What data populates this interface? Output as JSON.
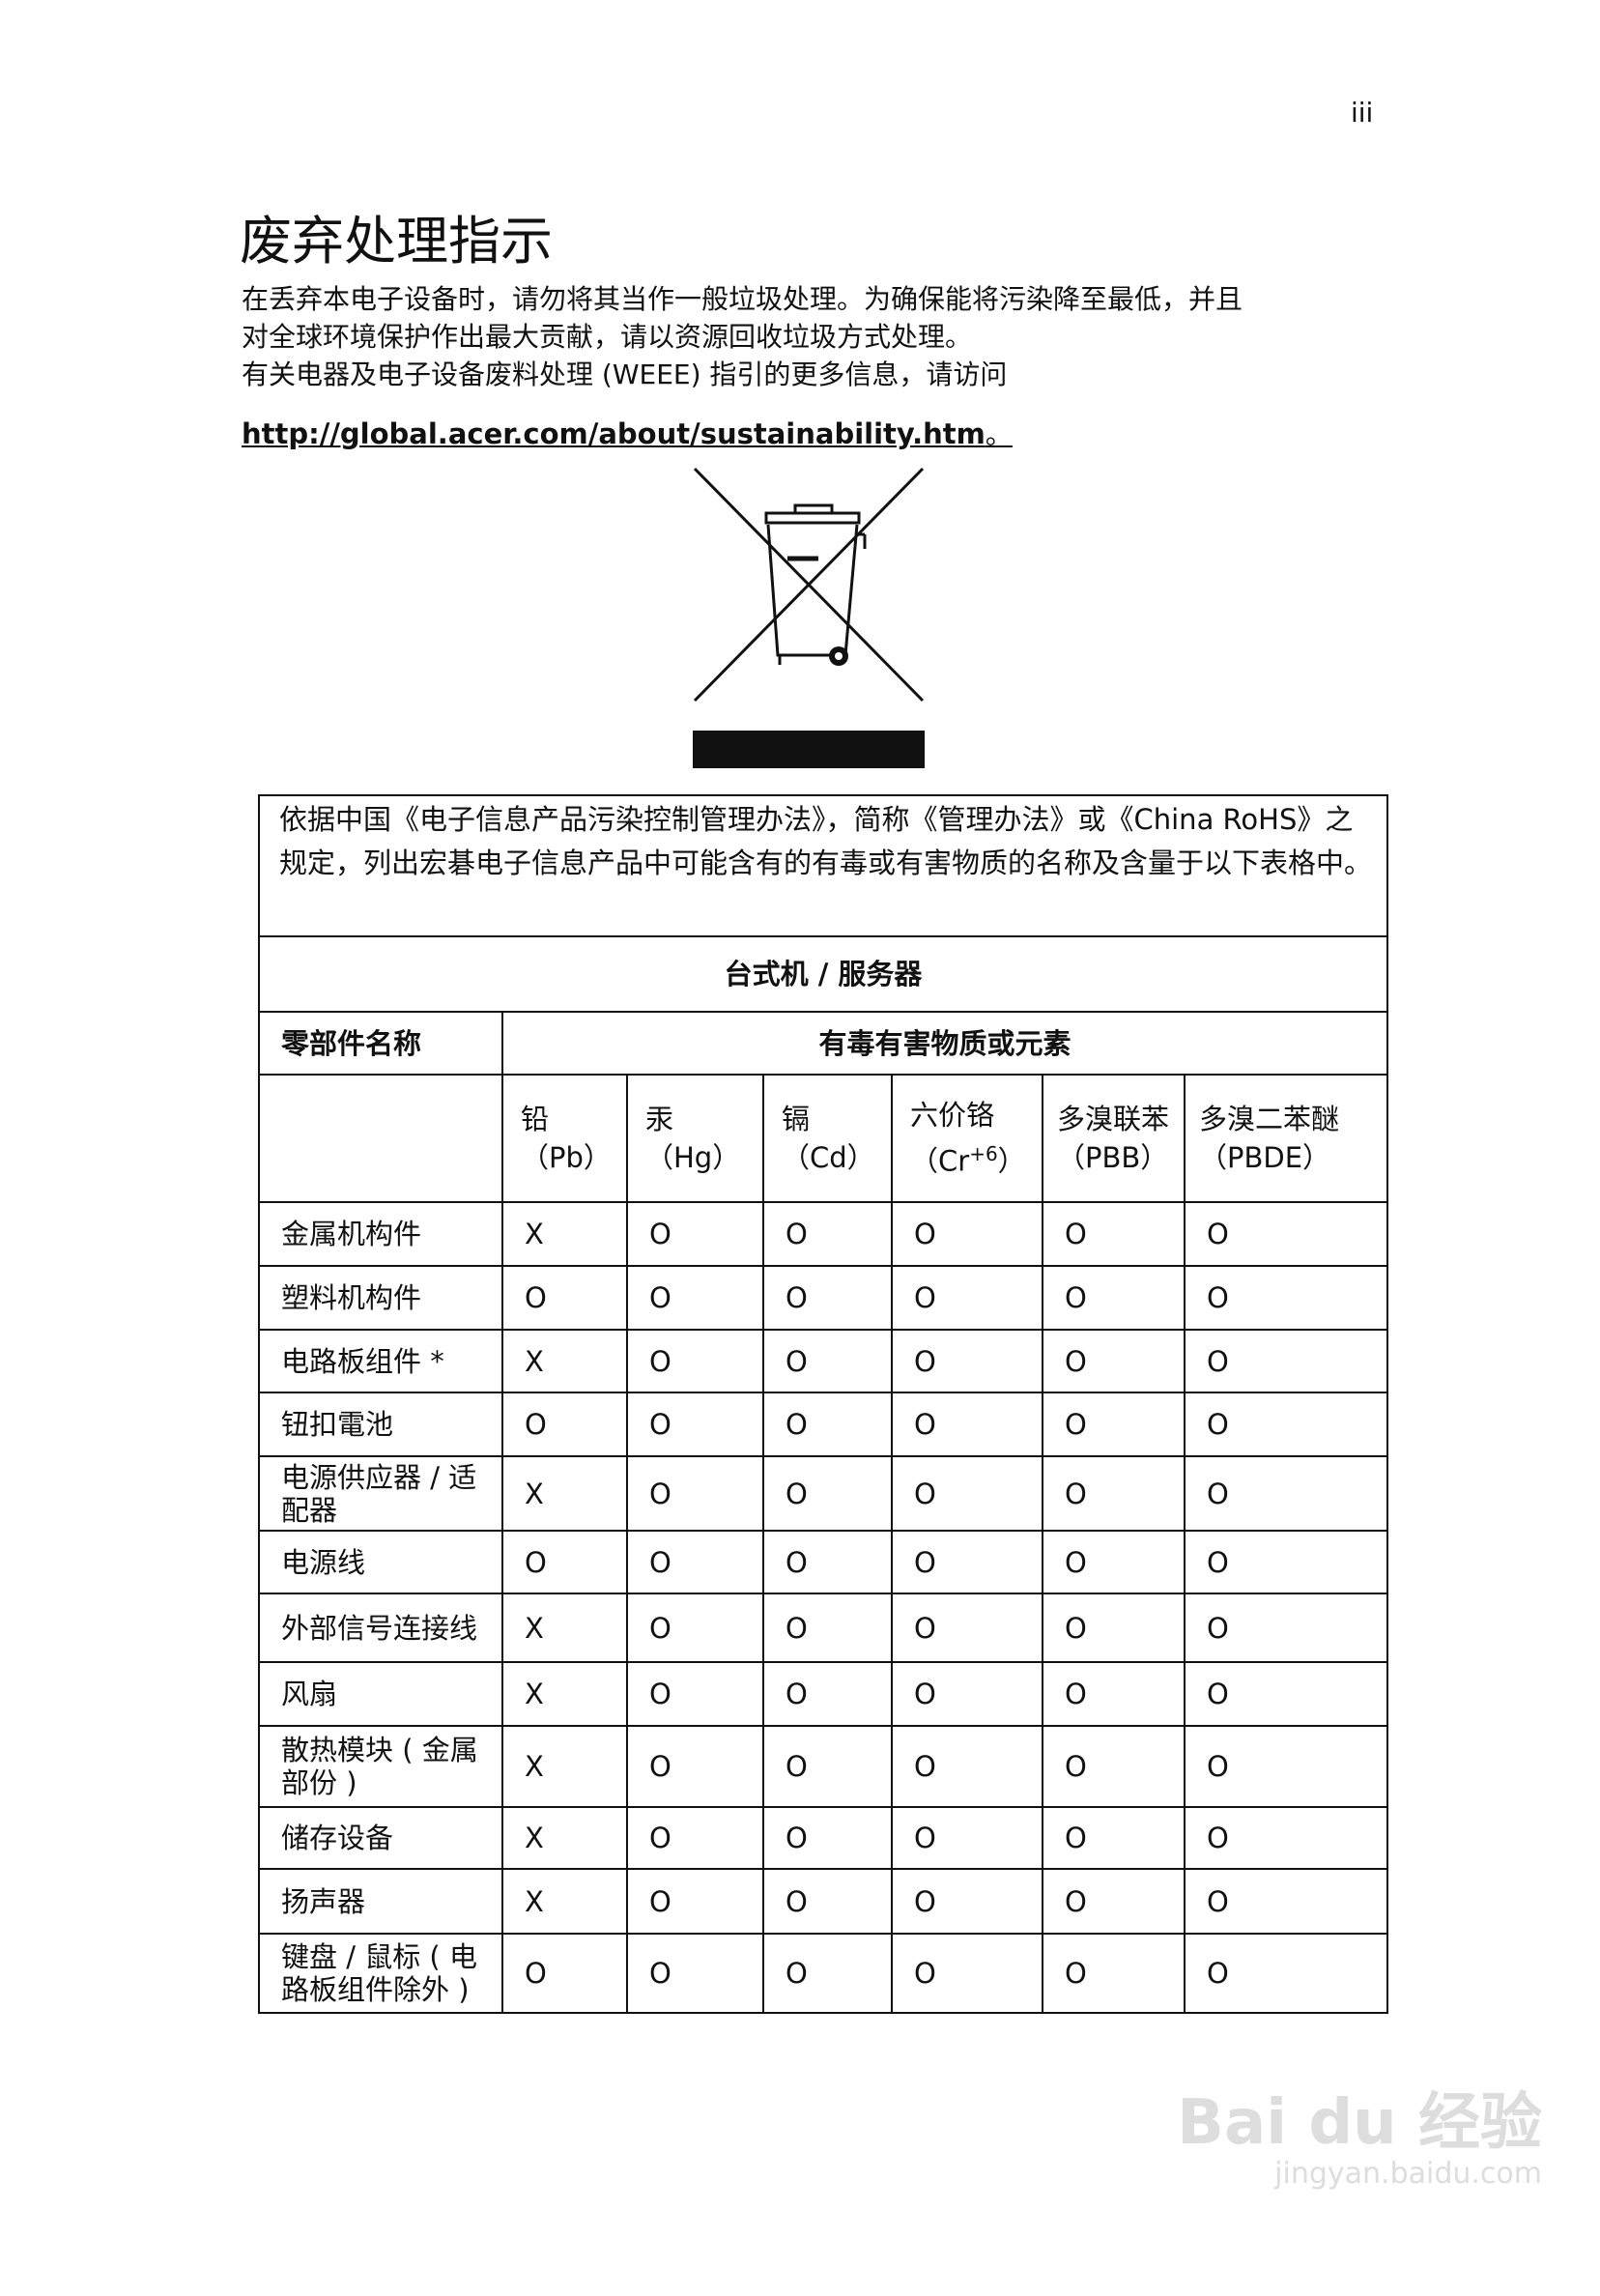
{
  "page_number": "iii",
  "title": "废弃处理指示",
  "paragraph": [
    "在丢弃本电子设备时，请勿将其当作一般垃圾处理。为确保能将污染降至最低，并且",
    "对全球环境保护作出最大贡献，请以资源回收垃圾方式处理。",
    "有关电器及电子设备废料处理 (WEEE) 指引的更多信息，请访问"
  ],
  "link": {
    "text": "http://global.acer.com/about/sustainability.htm",
    "tail": "。"
  },
  "icon": "crossed-out-wheelie-bin-icon",
  "table": {
    "intro": "依据中国《电子信息产品污染控制管理办法》，简称《管理办法》或《China RoHS》之规定，列出宏碁电子信息产品中可能含有的有毒或有害物质的名称及含量于以下表格中。",
    "section_title": "台式机 / 服务器",
    "part_header": "零部件名称",
    "substance_header": "有毒有害物质或元素",
    "columns": [
      {
        "name": "铅",
        "symbol": "（Pb）"
      },
      {
        "name": "汞",
        "symbol": "（Hg）"
      },
      {
        "name": "镉",
        "symbol": "（Cd）"
      },
      {
        "name": "六价铬",
        "symbol": "（Cr",
        "sup": "+6",
        "symbol_end": "）"
      },
      {
        "name": "多溴联苯",
        "symbol": "（PBB）"
      },
      {
        "name": "多溴二苯醚",
        "symbol": "（PBDE）"
      }
    ],
    "rows": [
      {
        "part": "金属机构件",
        "values": [
          "X",
          "O",
          "O",
          "O",
          "O",
          "O"
        ]
      },
      {
        "part": "塑料机构件",
        "values": [
          "O",
          "O",
          "O",
          "O",
          "O",
          "O"
        ]
      },
      {
        "part": "电路板组件 *",
        "values": [
          "X",
          "O",
          "O",
          "O",
          "O",
          "O"
        ]
      },
      {
        "part": "钮扣電池",
        "values": [
          "O",
          "O",
          "O",
          "O",
          "O",
          "O"
        ]
      },
      {
        "part": "电源供应器 / 适配器",
        "values": [
          "X",
          "O",
          "O",
          "O",
          "O",
          "O"
        ]
      },
      {
        "part": "电源线",
        "values": [
          "O",
          "O",
          "O",
          "O",
          "O",
          "O"
        ]
      },
      {
        "part": "外部信号连接线",
        "values": [
          "X",
          "O",
          "O",
          "O",
          "O",
          "O"
        ]
      },
      {
        "part": "风扇",
        "values": [
          "X",
          "O",
          "O",
          "O",
          "O",
          "O"
        ]
      },
      {
        "part": "散热模块 ( 金属部份 )",
        "values": [
          "X",
          "O",
          "O",
          "O",
          "O",
          "O"
        ]
      },
      {
        "part": "储存设备",
        "values": [
          "X",
          "O",
          "O",
          "O",
          "O",
          "O"
        ]
      },
      {
        "part": "扬声器",
        "values": [
          "X",
          "O",
          "O",
          "O",
          "O",
          "O"
        ]
      },
      {
        "part": "键盘 / 鼠标 ( 电路板组件除外 )",
        "values": [
          "O",
          "O",
          "O",
          "O",
          "O",
          "O"
        ]
      }
    ]
  },
  "watermark": {
    "brand": "Bai du 经验",
    "url": "jingyan.baidu.com"
  }
}
